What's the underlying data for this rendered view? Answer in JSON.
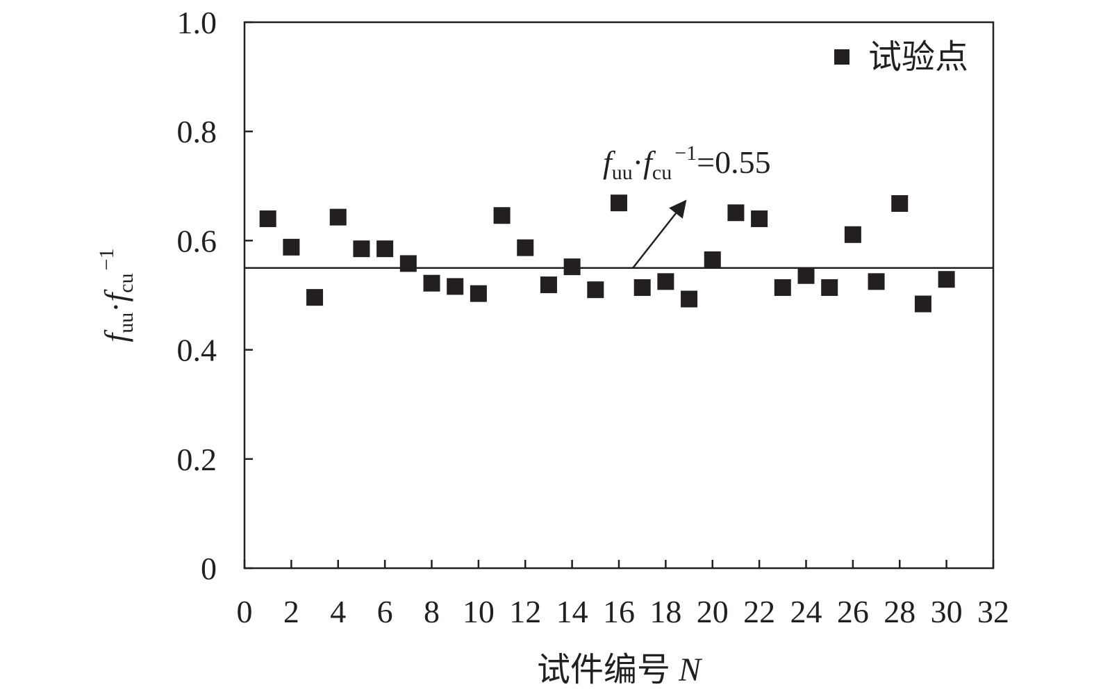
{
  "chart_data": {
    "type": "scatter",
    "xlabel": {
      "text": "试件编号 ",
      "var": "N"
    },
    "ylabel": {
      "f1": "f",
      "sub1": "uu",
      "dot": "·",
      "f2": "f",
      "sub2": "cu",
      "sup": "−1"
    },
    "xlim": [
      0,
      32
    ],
    "ylim": [
      0,
      1.0
    ],
    "x_ticks": [
      0,
      2,
      4,
      6,
      8,
      10,
      12,
      14,
      16,
      18,
      20,
      22,
      24,
      26,
      28,
      30,
      32
    ],
    "x_tick_labels": [
      "0",
      "2",
      "4",
      "6",
      "8",
      "10",
      "12",
      "14",
      "16",
      "18",
      "20",
      "22",
      "24",
      "26",
      "28",
      "30",
      "32"
    ],
    "y_ticks": [
      0,
      0.2,
      0.4,
      0.6,
      0.8,
      1.0
    ],
    "y_tick_labels": [
      "0",
      "0.2",
      "0.4",
      "0.6",
      "0.8",
      "1.0"
    ],
    "grid": false,
    "legend": {
      "position": "top-right",
      "entries": [
        {
          "label": "试验点",
          "marker": "square"
        }
      ]
    },
    "reference_line": {
      "y": 0.55
    },
    "annotation": {
      "f1": "f",
      "sub1": "uu",
      "dot": "·",
      "f2": "f",
      "sub2": "cu",
      "sup": "−1",
      "value": "=0.55",
      "arrow_from": [
        16.6,
        0.55
      ],
      "arrow_to": [
        18.8,
        0.67
      ]
    },
    "series": [
      {
        "name": "试验点",
        "color": "#231f20",
        "marker": "square",
        "points": [
          [
            1,
            0.64
          ],
          [
            2,
            0.588
          ],
          [
            3,
            0.496
          ],
          [
            4,
            0.643
          ],
          [
            5,
            0.585
          ],
          [
            6,
            0.585
          ],
          [
            7,
            0.558
          ],
          [
            8,
            0.522
          ],
          [
            9,
            0.516
          ],
          [
            10,
            0.503
          ],
          [
            11,
            0.646
          ],
          [
            12,
            0.587
          ],
          [
            13,
            0.519
          ],
          [
            14,
            0.552
          ],
          [
            15,
            0.51
          ],
          [
            16,
            0.669
          ],
          [
            17,
            0.514
          ],
          [
            18,
            0.525
          ],
          [
            19,
            0.493
          ],
          [
            20,
            0.565
          ],
          [
            21,
            0.651
          ],
          [
            22,
            0.64
          ],
          [
            23,
            0.514
          ],
          [
            24,
            0.536
          ],
          [
            25,
            0.514
          ],
          [
            26,
            0.611
          ],
          [
            27,
            0.525
          ],
          [
            28,
            0.668
          ],
          [
            29,
            0.484
          ],
          [
            30,
            0.529
          ]
        ]
      }
    ]
  }
}
